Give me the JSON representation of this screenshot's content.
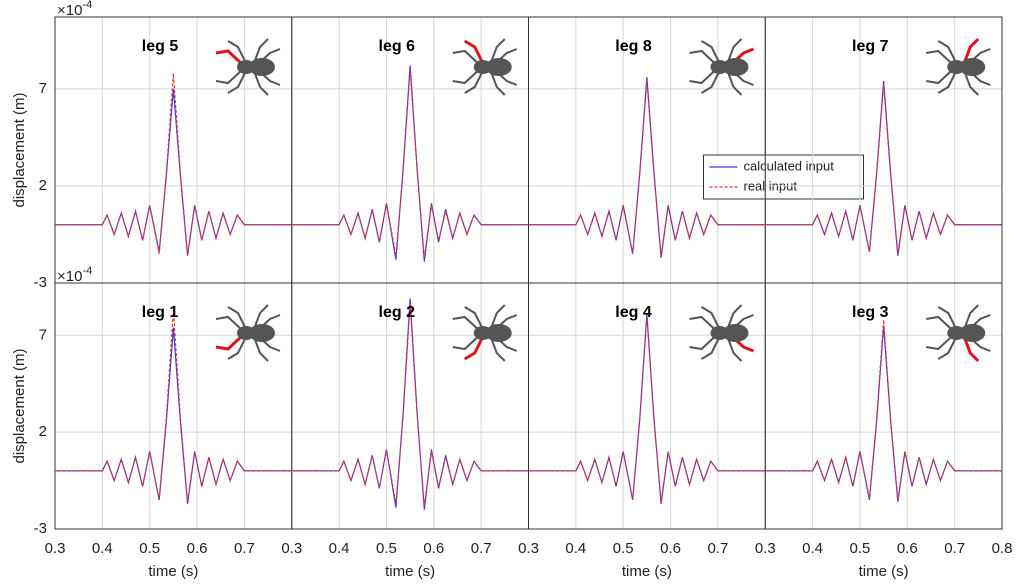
{
  "chart_data": [
    {
      "type": "line",
      "title": "leg 5",
      "y_label": "displacement (m)",
      "y_scale_base": "×10",
      "y_scale_power": "-4",
      "x": [
        0.3,
        0.4,
        0.41,
        0.425,
        0.44,
        0.455,
        0.47,
        0.485,
        0.5,
        0.52,
        0.535,
        0.55,
        0.565,
        0.58,
        0.595,
        0.61,
        0.625,
        0.64,
        0.655,
        0.67,
        0.685,
        0.7,
        0.8
      ],
      "series": [
        {
          "color": "#3b3bdb",
          "values": [
            0,
            0,
            0.5,
            -0.5,
            0.6,
            -0.6,
            0.7,
            -0.8,
            1.0,
            -1.4,
            2.5,
            7.0,
            2.5,
            -1.6,
            1.0,
            -0.8,
            0.7,
            -0.7,
            0.6,
            -0.5,
            0.5,
            0,
            0
          ]
        },
        {
          "color": "#e8332e",
          "values": [
            0,
            0,
            0.5,
            -0.5,
            0.6,
            -0.6,
            0.7,
            -0.8,
            1.0,
            -1.5,
            2.6,
            7.8,
            2.6,
            -1.6,
            1.0,
            -0.8,
            0.7,
            -0.7,
            0.6,
            -0.5,
            0.5,
            0,
            0
          ]
        }
      ],
      "xlim": [
        0.3,
        0.8
      ],
      "xticks": [
        0.3,
        0.4,
        0.5,
        0.6,
        0.7,
        0.8
      ],
      "ylim": [
        -3,
        10.7
      ],
      "yticks": [
        -3,
        2,
        7
      ],
      "xtick_labels": false,
      "ytick_labels": true,
      "grid": true
    },
    {
      "type": "line",
      "title": "leg 6",
      "x": [
        0.3,
        0.4,
        0.41,
        0.425,
        0.44,
        0.455,
        0.47,
        0.485,
        0.5,
        0.52,
        0.535,
        0.55,
        0.565,
        0.58,
        0.595,
        0.61,
        0.625,
        0.64,
        0.655,
        0.67,
        0.685,
        0.7,
        0.8
      ],
      "series": [
        {
          "color": "#3b3bdb",
          "values": [
            0,
            0,
            0.5,
            -0.5,
            0.6,
            -0.7,
            0.8,
            -0.9,
            1.1,
            -1.8,
            2.8,
            8.2,
            2.8,
            -1.9,
            1.1,
            -0.9,
            0.8,
            -0.7,
            0.6,
            -0.5,
            0.5,
            0,
            0
          ]
        },
        {
          "color": "#e8332e",
          "values": [
            0,
            0,
            0.5,
            -0.5,
            0.6,
            -0.7,
            0.8,
            -0.9,
            1.1,
            -1.6,
            2.7,
            8.0,
            2.7,
            -1.7,
            1.0,
            -0.8,
            0.7,
            -0.7,
            0.6,
            -0.5,
            0.5,
            0,
            0
          ]
        }
      ],
      "xlim": [
        0.3,
        0.8
      ],
      "xticks": [
        0.3,
        0.4,
        0.5,
        0.6,
        0.7,
        0.8
      ],
      "ylim": [
        -3,
        10.7
      ],
      "yticks": [
        -3,
        2,
        7
      ],
      "xtick_labels": false,
      "ytick_labels": false,
      "grid": true
    },
    {
      "type": "line",
      "title": "leg 8",
      "x": [
        0.3,
        0.4,
        0.41,
        0.425,
        0.44,
        0.455,
        0.47,
        0.485,
        0.5,
        0.52,
        0.535,
        0.55,
        0.565,
        0.58,
        0.595,
        0.61,
        0.625,
        0.64,
        0.655,
        0.67,
        0.685,
        0.7,
        0.8
      ],
      "series": [
        {
          "name": "calculated input",
          "color": "#3b3bdb",
          "values": [
            0,
            0,
            0.5,
            -0.5,
            0.6,
            -0.6,
            0.7,
            -0.8,
            1.0,
            -1.5,
            2.7,
            7.6,
            2.7,
            -1.7,
            1.0,
            -0.8,
            0.7,
            -0.7,
            0.6,
            -0.5,
            0.5,
            0,
            0
          ]
        },
        {
          "name": "real input",
          "color": "#e8332e",
          "values": [
            0,
            0,
            0.5,
            -0.5,
            0.6,
            -0.6,
            0.7,
            -0.8,
            1.0,
            -1.5,
            2.6,
            7.4,
            2.6,
            -1.6,
            1.0,
            -0.8,
            0.7,
            -0.7,
            0.6,
            -0.5,
            0.5,
            0,
            0
          ]
        }
      ],
      "xlim": [
        0.3,
        0.8
      ],
      "xticks": [
        0.3,
        0.4,
        0.5,
        0.6,
        0.7,
        0.8
      ],
      "ylim": [
        -3,
        10.7
      ],
      "yticks": [
        -3,
        2,
        7
      ],
      "xtick_labels": false,
      "ytick_labels": false,
      "grid": true,
      "legend": "right"
    },
    {
      "type": "line",
      "title": "leg 7",
      "x": [
        0.3,
        0.4,
        0.41,
        0.425,
        0.44,
        0.455,
        0.47,
        0.485,
        0.5,
        0.52,
        0.535,
        0.55,
        0.565,
        0.58,
        0.595,
        0.61,
        0.625,
        0.64,
        0.655,
        0.67,
        0.685,
        0.7,
        0.8
      ],
      "series": [
        {
          "color": "#3b3bdb",
          "values": [
            0,
            0,
            0.5,
            -0.5,
            0.6,
            -0.6,
            0.7,
            -0.8,
            1.0,
            -1.4,
            2.6,
            7.4,
            2.6,
            -1.6,
            1.0,
            -0.8,
            0.7,
            -0.7,
            0.6,
            -0.5,
            0.5,
            0,
            0
          ]
        },
        {
          "color": "#e8332e",
          "values": [
            0,
            0,
            0.5,
            -0.5,
            0.6,
            -0.6,
            0.7,
            -0.8,
            1.0,
            -1.4,
            2.5,
            7.2,
            2.5,
            -1.5,
            1.0,
            -0.8,
            0.7,
            -0.7,
            0.6,
            -0.5,
            0.5,
            0,
            0
          ]
        }
      ],
      "xlim": [
        0.3,
        0.8
      ],
      "xticks": [
        0.3,
        0.4,
        0.5,
        0.6,
        0.7,
        0.8
      ],
      "ylim": [
        -3,
        10.7
      ],
      "yticks": [
        -3,
        2,
        7
      ],
      "xtick_labels": false,
      "ytick_labels": false,
      "grid": true
    },
    {
      "type": "line",
      "title": "leg 1",
      "y_label": "displacement (m)",
      "x_label": "time (s)",
      "y_scale_base": "×10",
      "y_scale_power": "-4",
      "x": [
        0.3,
        0.4,
        0.41,
        0.425,
        0.44,
        0.455,
        0.47,
        0.485,
        0.5,
        0.52,
        0.535,
        0.55,
        0.565,
        0.58,
        0.595,
        0.61,
        0.625,
        0.64,
        0.655,
        0.67,
        0.685,
        0.7,
        0.8
      ],
      "series": [
        {
          "color": "#3b3bdb",
          "values": [
            0,
            0,
            0.5,
            -0.5,
            0.6,
            -0.6,
            0.7,
            -0.8,
            1.0,
            -1.5,
            2.5,
            7.4,
            2.5,
            -1.7,
            1.0,
            -0.8,
            0.7,
            -0.7,
            0.6,
            -0.5,
            0.5,
            0,
            0
          ]
        },
        {
          "color": "#e8332e",
          "values": [
            0,
            0,
            0.5,
            -0.5,
            0.6,
            -0.6,
            0.7,
            -0.8,
            1.0,
            -1.5,
            2.7,
            8.3,
            2.7,
            -1.6,
            1.0,
            -0.8,
            0.7,
            -0.7,
            0.6,
            -0.5,
            0.5,
            0,
            0
          ]
        }
      ],
      "xlim": [
        0.3,
        0.8
      ],
      "xticks": [
        0.3,
        0.4,
        0.5,
        0.6,
        0.7
      ],
      "ylim": [
        -3,
        9.7
      ],
      "yticks": [
        -3,
        2,
        7
      ],
      "xtick_labels": true,
      "ytick_labels": true,
      "grid": true
    },
    {
      "type": "line",
      "title": "leg 2",
      "x_label": "time (s)",
      "x": [
        0.3,
        0.4,
        0.41,
        0.425,
        0.44,
        0.455,
        0.47,
        0.485,
        0.5,
        0.52,
        0.535,
        0.55,
        0.565,
        0.58,
        0.595,
        0.61,
        0.625,
        0.64,
        0.655,
        0.67,
        0.685,
        0.7,
        0.8
      ],
      "series": [
        {
          "color": "#3b3bdb",
          "values": [
            0,
            0,
            0.5,
            -0.5,
            0.6,
            -0.7,
            0.8,
            -0.9,
            1.1,
            -1.9,
            2.9,
            8.9,
            2.9,
            -2.0,
            1.1,
            -0.9,
            0.8,
            -0.7,
            0.6,
            -0.5,
            0.5,
            0,
            0
          ]
        },
        {
          "color": "#e8332e",
          "values": [
            0,
            0,
            0.5,
            -0.5,
            0.6,
            -0.7,
            0.8,
            -0.9,
            1.1,
            -1.7,
            2.8,
            8.6,
            2.8,
            -1.8,
            1.0,
            -0.8,
            0.7,
            -0.7,
            0.6,
            -0.5,
            0.5,
            0,
            0
          ]
        }
      ],
      "xlim": [
        0.3,
        0.8
      ],
      "xticks": [
        0.3,
        0.4,
        0.5,
        0.6,
        0.7
      ],
      "ylim": [
        -3,
        9.7
      ],
      "yticks": [
        -3,
        2,
        7
      ],
      "xtick_labels": true,
      "ytick_labels": false,
      "grid": true
    },
    {
      "type": "line",
      "title": "leg 4",
      "x_label": "time (s)",
      "x": [
        0.3,
        0.4,
        0.41,
        0.425,
        0.44,
        0.455,
        0.47,
        0.485,
        0.5,
        0.52,
        0.535,
        0.55,
        0.565,
        0.58,
        0.595,
        0.61,
        0.625,
        0.64,
        0.655,
        0.67,
        0.685,
        0.7,
        0.8
      ],
      "series": [
        {
          "color": "#3b3bdb",
          "values": [
            0,
            0,
            0.5,
            -0.5,
            0.6,
            -0.6,
            0.7,
            -0.8,
            1.0,
            -1.5,
            2.7,
            8.1,
            2.7,
            -1.7,
            1.0,
            -0.8,
            0.7,
            -0.7,
            0.6,
            -0.5,
            0.5,
            0,
            0
          ]
        },
        {
          "color": "#e8332e",
          "values": [
            0,
            0,
            0.5,
            -0.5,
            0.6,
            -0.6,
            0.7,
            -0.8,
            1.0,
            -1.5,
            2.6,
            8.0,
            2.6,
            -1.6,
            1.0,
            -0.8,
            0.7,
            -0.7,
            0.6,
            -0.5,
            0.5,
            0,
            0
          ]
        }
      ],
      "xlim": [
        0.3,
        0.8
      ],
      "xticks": [
        0.3,
        0.4,
        0.5,
        0.6,
        0.7
      ],
      "ylim": [
        -3,
        9.7
      ],
      "yticks": [
        -3,
        2,
        7
      ],
      "xtick_labels": true,
      "ytick_labels": false,
      "grid": true
    },
    {
      "type": "line",
      "title": "leg 3",
      "x_label": "time (s)",
      "x": [
        0.3,
        0.4,
        0.41,
        0.425,
        0.44,
        0.455,
        0.47,
        0.485,
        0.5,
        0.52,
        0.535,
        0.55,
        0.565,
        0.58,
        0.595,
        0.61,
        0.625,
        0.64,
        0.655,
        0.67,
        0.685,
        0.7,
        0.8
      ],
      "series": [
        {
          "color": "#3b3bdb",
          "values": [
            0,
            0,
            0.5,
            -0.5,
            0.6,
            -0.6,
            0.7,
            -0.8,
            1.0,
            -1.5,
            2.5,
            7.5,
            2.5,
            -1.6,
            1.0,
            -0.8,
            0.7,
            -0.7,
            0.6,
            -0.5,
            0.5,
            0,
            0
          ]
        },
        {
          "color": "#e8332e",
          "values": [
            0,
            0,
            0.5,
            -0.5,
            0.6,
            -0.6,
            0.7,
            -0.8,
            1.0,
            -1.4,
            2.6,
            7.8,
            2.6,
            -1.5,
            1.0,
            -0.8,
            0.7,
            -0.7,
            0.6,
            -0.5,
            0.5,
            0,
            0
          ]
        }
      ],
      "xlim": [
        0.3,
        0.8
      ],
      "xticks": [
        0.3,
        0.4,
        0.5,
        0.6,
        0.7,
        0.8
      ],
      "ylim": [
        -3,
        9.7
      ],
      "yticks": [
        -3,
        2,
        7
      ],
      "xtick_labels": true,
      "ytick_labels": false,
      "grid": true
    }
  ]
}
